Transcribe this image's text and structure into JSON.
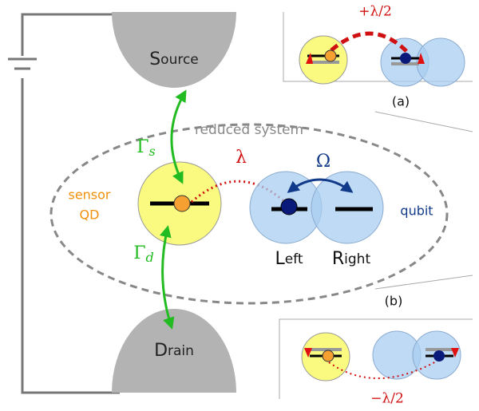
{
  "labels": {
    "source": {
      "initial": "S",
      "rest": "ource"
    },
    "drain": {
      "initial": "D",
      "rest": "rain"
    },
    "gamma_s": {
      "symbol": "Γ",
      "sub": "s"
    },
    "gamma_d": {
      "symbol": "Γ",
      "sub": "d"
    },
    "reduced_system": "reduced system",
    "lambda": "λ",
    "omega": "Ω",
    "sensor": [
      "sensor",
      "QD"
    ],
    "qubit": "qubit",
    "left": {
      "initial": "L",
      "rest": "eft"
    },
    "right": {
      "initial": "R",
      "rest": "ight"
    }
  },
  "inset_a": {
    "label": "(a)",
    "shift": "+λ/2"
  },
  "inset_b": {
    "label": "(b)",
    "shift": "−λ/2"
  }
}
